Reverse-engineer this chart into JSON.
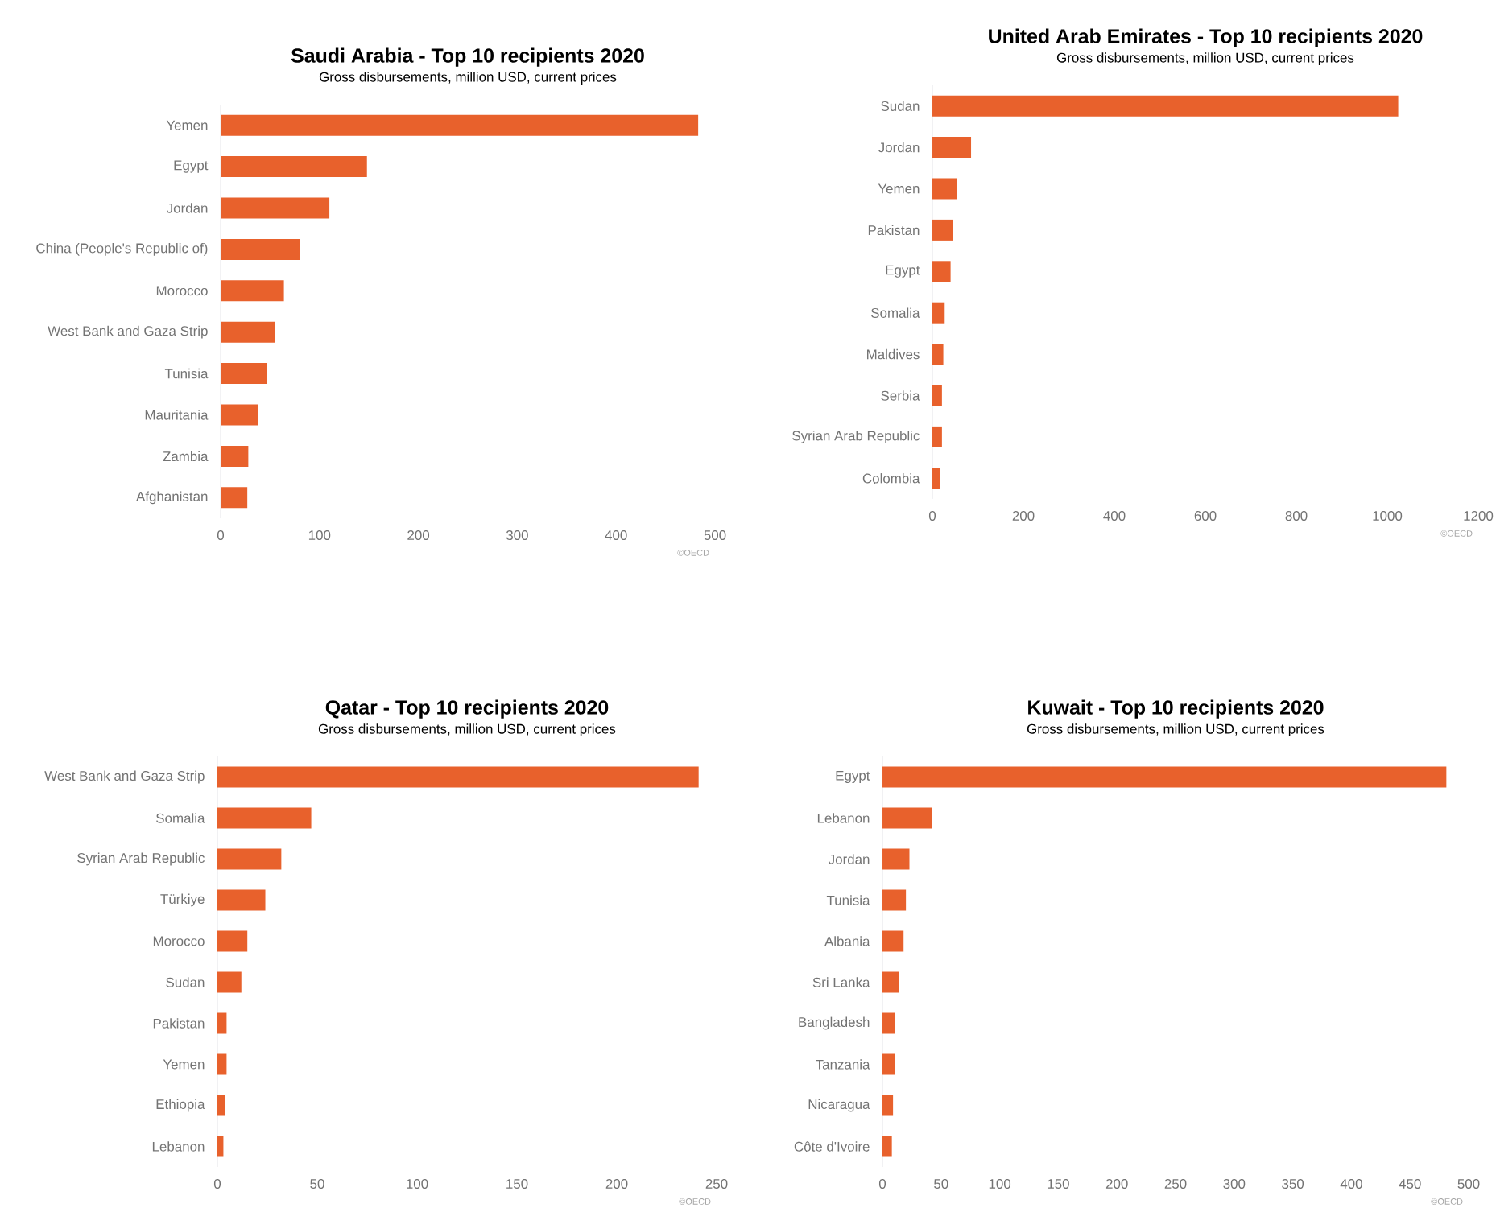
{
  "chart_data": [
    {
      "type": "bar",
      "orientation": "horizontal",
      "title": "Saudi Arabia - Top 10 recipients 2020",
      "subtitle": "Gross disbursements, million USD, current prices",
      "categories": [
        "Yemen",
        "Egypt",
        "Jordan",
        "China (People's Republic of)",
        "Morocco",
        "West Bank and Gaza Strip",
        "Tunisia",
        "Mauritania",
        "Zambia",
        "Afghanistan"
      ],
      "values": [
        483,
        148,
        110,
        80,
        64,
        55,
        47,
        38,
        28,
        27
      ],
      "color": "#e8612c",
      "xlim": [
        0,
        500
      ],
      "xticks": [
        0,
        100,
        200,
        300,
        400,
        500
      ],
      "annotations": [
        "©OECD"
      ]
    },
    {
      "type": "bar",
      "orientation": "horizontal",
      "title": "United Arab Emirates - Top 10 recipients 2020",
      "subtitle": "Gross disbursements, million USD, current prices",
      "categories": [
        "Sudan",
        "Jordan",
        "Yemen",
        "Pakistan",
        "Egypt",
        "Somalia",
        "Maldives",
        "Serbia",
        "Syrian Arab Republic",
        "Colombia"
      ],
      "values": [
        1024,
        85,
        54,
        45,
        40,
        27,
        24,
        21,
        21,
        16
      ],
      "color": "#e8612c",
      "xlim": [
        0,
        1200
      ],
      "xticks": [
        0,
        200,
        400,
        600,
        800,
        1000,
        1200
      ],
      "annotations": [
        "©OECD"
      ]
    },
    {
      "type": "bar",
      "orientation": "horizontal",
      "title": "Qatar - Top 10 recipients 2020",
      "subtitle": "Gross disbursements, million USD, current prices",
      "categories": [
        "West Bank and Gaza Strip",
        "Somalia",
        "Syrian Arab Republic",
        "Türkiye",
        "Morocco",
        "Sudan",
        "Pakistan",
        "Yemen",
        "Ethiopia",
        "Lebanon"
      ],
      "values": [
        241,
        47,
        32,
        24,
        15,
        12,
        4.6,
        4.6,
        3.8,
        3
      ],
      "color": "#e8612c",
      "xlim": [
        0,
        250
      ],
      "xticks": [
        0,
        50,
        100,
        150,
        200,
        250
      ],
      "annotations": [
        "©OECD"
      ]
    },
    {
      "type": "bar",
      "orientation": "horizontal",
      "title": "Kuwait - Top 10 recipients 2020",
      "subtitle": "Gross disbursements, million USD, current prices",
      "categories": [
        "Egypt",
        "Lebanon",
        "Jordan",
        "Tunisia",
        "Albania",
        "Sri Lanka",
        "Bangladesh",
        "Tanzania",
        "Nicaragua",
        "Côte d'Ivoire"
      ],
      "values": [
        481,
        42,
        23,
        20,
        18,
        14,
        11,
        11,
        9,
        8
      ],
      "color": "#e8612c",
      "xlim": [
        0,
        500
      ],
      "xticks": [
        0,
        50,
        100,
        150,
        200,
        250,
        300,
        350,
        400,
        450,
        500
      ],
      "annotations": [
        "©OECD"
      ]
    }
  ]
}
